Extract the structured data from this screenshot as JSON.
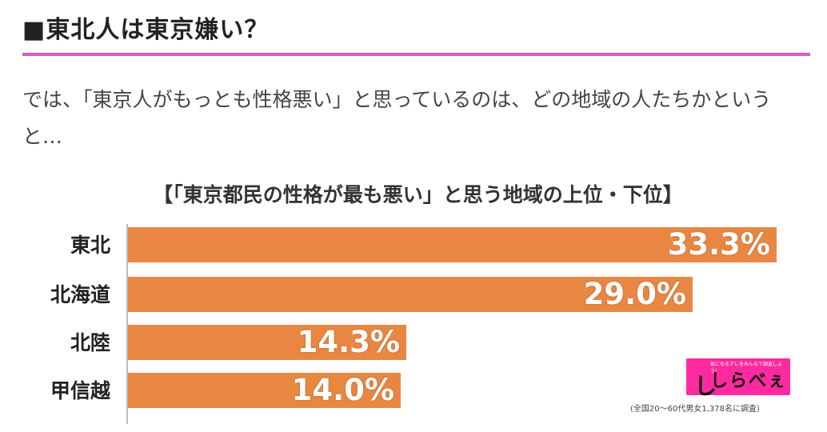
{
  "article": {
    "heading": "■東北人は東京嫌い？",
    "paragraph": "では、「東京人がもっとも性格悪い」と思っているのは、どの地域の人たちかというと…"
  },
  "figure": {
    "logo": {
      "mark": "し",
      "text": "しらべぇ",
      "tagline": "気になるアレをみんなで調査しよう！"
    },
    "note": "(全国20〜60代男女1,378名に調査)"
  },
  "colors": {
    "accent_rule": "#e05ac4",
    "bar": "#e98742",
    "logo_bg": "#ff2aa0"
  },
  "chart_data": {
    "type": "bar",
    "orientation": "horizontal",
    "title": "【「東京都民の性格が最も悪い」と思う地域の上位・下位】",
    "categories": [
      "東北",
      "北海道",
      "北陸",
      "甲信越"
    ],
    "values": [
      33.3,
      29.0,
      14.3,
      14.0
    ],
    "value_labels": [
      "33.3%",
      "29.0%",
      "14.3%",
      "14.0%"
    ],
    "unit": "%",
    "xlim": [
      0,
      34
    ],
    "grid": false,
    "legend": "none"
  }
}
